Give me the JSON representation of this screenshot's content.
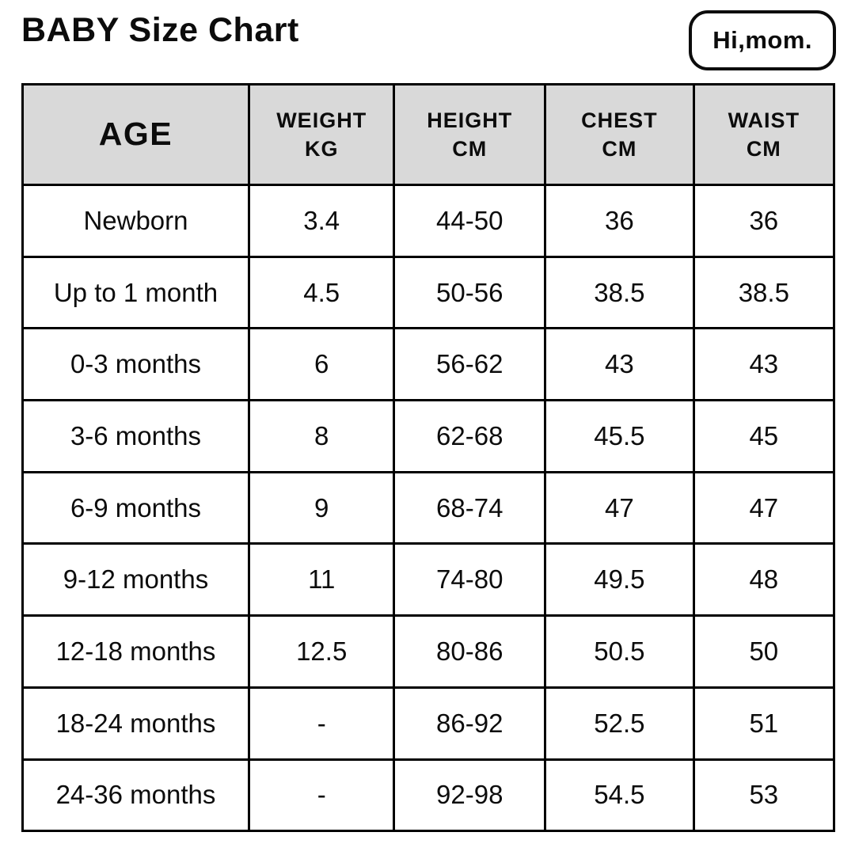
{
  "page": {
    "title": "BABY Size Chart",
    "logo_text": "Hi,mom."
  },
  "colors": {
    "header_bg": "#d9d9d9",
    "border": "#000000",
    "text": "#0c0c0c",
    "background": "#ffffff"
  },
  "table": {
    "headers": [
      {
        "label": "AGE",
        "unit": ""
      },
      {
        "label": "WEIGHT",
        "unit": "KG"
      },
      {
        "label": "HEIGHT",
        "unit": "CM"
      },
      {
        "label": "CHEST",
        "unit": "CM"
      },
      {
        "label": "WAIST",
        "unit": "CM"
      }
    ]
  },
  "chart_data": {
    "type": "table",
    "title": "BABY Size Chart",
    "columns": [
      "AGE",
      "WEIGHT KG",
      "HEIGHT CM",
      "CHEST CM",
      "WAIST CM"
    ],
    "rows": [
      [
        "Newborn",
        "3.4",
        "44-50",
        "36",
        "36"
      ],
      [
        "Up to 1 month",
        "4.5",
        "50-56",
        "38.5",
        "38.5"
      ],
      [
        "0-3 months",
        "6",
        "56-62",
        "43",
        "43"
      ],
      [
        "3-6 months",
        "8",
        "62-68",
        "45.5",
        "45"
      ],
      [
        "6-9 months",
        "9",
        "68-74",
        "47",
        "47"
      ],
      [
        "9-12 months",
        "11",
        "74-80",
        "49.5",
        "48"
      ],
      [
        "12-18 months",
        "12.5",
        "80-86",
        "50.5",
        "50"
      ],
      [
        "18-24 months",
        "-",
        "86-92",
        "52.5",
        "51"
      ],
      [
        "24-36 months",
        "-",
        "92-98",
        "54.5",
        "53"
      ]
    ]
  }
}
